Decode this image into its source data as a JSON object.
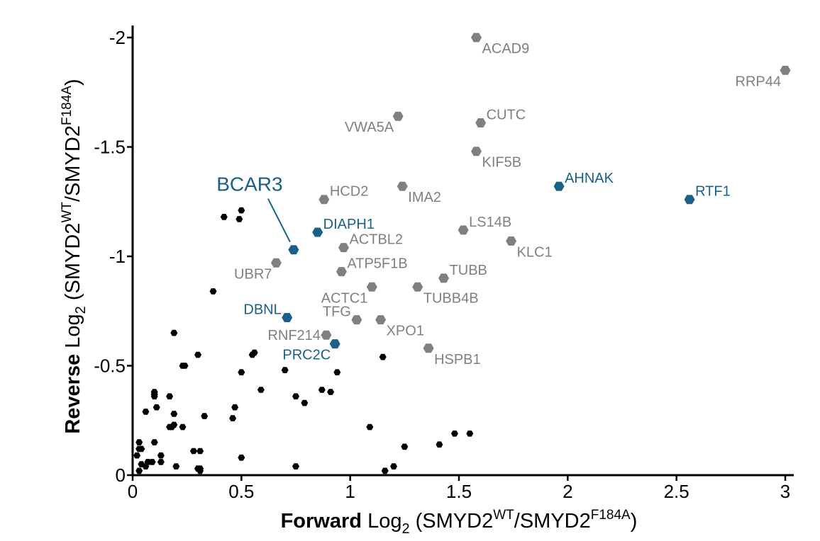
{
  "chart_data": {
    "type": "scatter",
    "xlabel": {
      "bold": "Forward",
      "base": "Log",
      "base_sub": "2",
      "open": " (SMYD2",
      "sup1": "WT",
      "mid": "/SMYD2",
      "sup2": "F184A",
      "close": ")"
    },
    "ylabel": {
      "bold": "Reverse",
      "base": "Log",
      "base_sub": "2",
      "open": " (SMYD2",
      "sup1": "WT",
      "mid": "/SMYD2",
      "sup2": "F184A",
      "close": ")"
    },
    "xlim": [
      0,
      3.05
    ],
    "ylim": [
      0,
      -2.05
    ],
    "y_reversed": true,
    "x_ticks": [
      {
        "v": 0,
        "label": "0"
      },
      {
        "v": 0.5,
        "label": "0.5"
      },
      {
        "v": 1,
        "label": "1"
      },
      {
        "v": 1.5,
        "label": "1.5"
      },
      {
        "v": 2,
        "label": "2"
      },
      {
        "v": 2.5,
        "label": "2.5"
      },
      {
        "v": 3,
        "label": "3"
      }
    ],
    "y_ticks": [
      {
        "v": 0,
        "label": "0"
      },
      {
        "v": -0.5,
        "label": "-0.5"
      },
      {
        "v": -1,
        "label": "-1"
      },
      {
        "v": -1.5,
        "label": "-1.5"
      },
      {
        "v": -2,
        "label": "-2"
      }
    ],
    "colors": {
      "background": "#000000",
      "other": "#808080",
      "highlight": "#1a6089"
    },
    "labeled_points": [
      {
        "name": "ACAD9",
        "x": 1.58,
        "y": -2.0,
        "group": "other",
        "pos": "right-below"
      },
      {
        "name": "RRP44",
        "x": 3.0,
        "y": -1.85,
        "group": "other",
        "pos": "left-below"
      },
      {
        "name": "CUTC",
        "x": 1.6,
        "y": -1.61,
        "group": "other",
        "pos": "right-above"
      },
      {
        "name": "VWA5A",
        "x": 1.22,
        "y": -1.64,
        "group": "other",
        "pos": "left-below"
      },
      {
        "name": "KIF5B",
        "x": 1.58,
        "y": -1.48,
        "group": "other",
        "pos": "right-below"
      },
      {
        "name": "AHNAK",
        "x": 1.96,
        "y": -1.32,
        "group": "highlight",
        "pos": "right-above"
      },
      {
        "name": "RTF1",
        "x": 2.56,
        "y": -1.26,
        "group": "highlight",
        "pos": "right-above"
      },
      {
        "name": "HCD2",
        "x": 0.88,
        "y": -1.26,
        "group": "other",
        "pos": "right-above"
      },
      {
        "name": "IMA2",
        "x": 1.24,
        "y": -1.32,
        "group": "other",
        "pos": "right-below"
      },
      {
        "name": "DIAPH1",
        "x": 0.85,
        "y": -1.11,
        "group": "highlight",
        "pos": "right-above"
      },
      {
        "name": "LS14B",
        "x": 1.52,
        "y": -1.12,
        "group": "other",
        "pos": "right-above"
      },
      {
        "name": "ACTBL2",
        "x": 0.97,
        "y": -1.04,
        "group": "other",
        "pos": "right-above"
      },
      {
        "name": "KLC1",
        "x": 1.74,
        "y": -1.07,
        "group": "other",
        "pos": "right-below"
      },
      {
        "name": "BCAR3",
        "x": 0.74,
        "y": -1.03,
        "group": "highlight",
        "pos": "callout"
      },
      {
        "name": "UBR7",
        "x": 0.66,
        "y": -0.97,
        "group": "other",
        "pos": "left-below"
      },
      {
        "name": "ATP5F1B",
        "x": 0.96,
        "y": -0.93,
        "group": "other",
        "pos": "right-above"
      },
      {
        "name": "TUBB",
        "x": 1.43,
        "y": -0.9,
        "group": "other",
        "pos": "right-above"
      },
      {
        "name": "TUBB4B",
        "x": 1.31,
        "y": -0.86,
        "group": "other",
        "pos": "right-below"
      },
      {
        "name": "ACTC1",
        "x": 1.1,
        "y": -0.86,
        "group": "other",
        "pos": "left-below"
      },
      {
        "name": "DBNL",
        "x": 0.71,
        "y": -0.72,
        "group": "highlight",
        "pos": "left-above"
      },
      {
        "name": "TFG",
        "x": 1.03,
        "y": -0.71,
        "group": "other",
        "pos": "left-above"
      },
      {
        "name": "XPO1",
        "x": 1.14,
        "y": -0.71,
        "group": "other",
        "pos": "right-below"
      },
      {
        "name": "RNF214",
        "x": 0.89,
        "y": -0.64,
        "group": "other",
        "pos": "left"
      },
      {
        "name": "PRC2C",
        "x": 0.93,
        "y": -0.6,
        "group": "highlight",
        "pos": "left-below"
      },
      {
        "name": "HSPB1",
        "x": 1.36,
        "y": -0.58,
        "group": "other",
        "pos": "right-below"
      }
    ],
    "background_points": [
      [
        0.42,
        -1.18
      ],
      [
        0.5,
        -1.21
      ],
      [
        0.49,
        -1.17
      ],
      [
        0.37,
        -0.84
      ],
      [
        0.19,
        -0.65
      ],
      [
        0.3,
        -0.55
      ],
      [
        0.23,
        -0.5
      ],
      [
        0.24,
        -0.5
      ],
      [
        0.56,
        -0.56
      ],
      [
        0.55,
        -0.55
      ],
      [
        0.5,
        -0.47
      ],
      [
        0.7,
        -0.48
      ],
      [
        0.94,
        -0.47
      ],
      [
        0.87,
        -0.39
      ],
      [
        0.91,
        -0.38
      ],
      [
        0.59,
        -0.39
      ],
      [
        0.75,
        -0.36
      ],
      [
        0.79,
        -0.33
      ],
      [
        0.1,
        -0.38
      ],
      [
        0.1,
        -0.37
      ],
      [
        0.1,
        -0.36
      ],
      [
        0.17,
        -0.36
      ],
      [
        0.11,
        -0.31
      ],
      [
        0.06,
        -0.29
      ],
      [
        0.19,
        -0.28
      ],
      [
        0.19,
        -0.23
      ],
      [
        0.33,
        -0.27
      ],
      [
        0.47,
        -0.31
      ],
      [
        0.46,
        -0.26
      ],
      [
        0.17,
        -0.22
      ],
      [
        0.18,
        -0.22
      ],
      [
        0.23,
        -0.22
      ],
      [
        1.09,
        -0.22
      ],
      [
        1.15,
        -0.54
      ],
      [
        0.03,
        -0.15
      ],
      [
        0.1,
        -0.15
      ],
      [
        0.03,
        -0.12
      ],
      [
        0.04,
        -0.12
      ],
      [
        0.28,
        -0.11
      ],
      [
        0.31,
        -0.11
      ],
      [
        0.02,
        -0.09
      ],
      [
        0.13,
        -0.09
      ],
      [
        0.07,
        -0.06
      ],
      [
        0.09,
        -0.06
      ],
      [
        0.13,
        -0.06
      ],
      [
        0.5,
        -0.08
      ],
      [
        0.04,
        -0.05
      ],
      [
        0.06,
        -0.04
      ],
      [
        0.2,
        -0.04
      ],
      [
        0.3,
        -0.03
      ],
      [
        0.31,
        -0.03
      ],
      [
        0.31,
        -0.02
      ],
      [
        0.03,
        -0.02
      ],
      [
        0.75,
        -0.04
      ],
      [
        1.16,
        -0.02
      ],
      [
        1.2,
        -0.04
      ],
      [
        1.25,
        -0.13
      ],
      [
        1.41,
        -0.14
      ],
      [
        1.48,
        -0.19
      ],
      [
        1.55,
        -0.19
      ]
    ]
  }
}
